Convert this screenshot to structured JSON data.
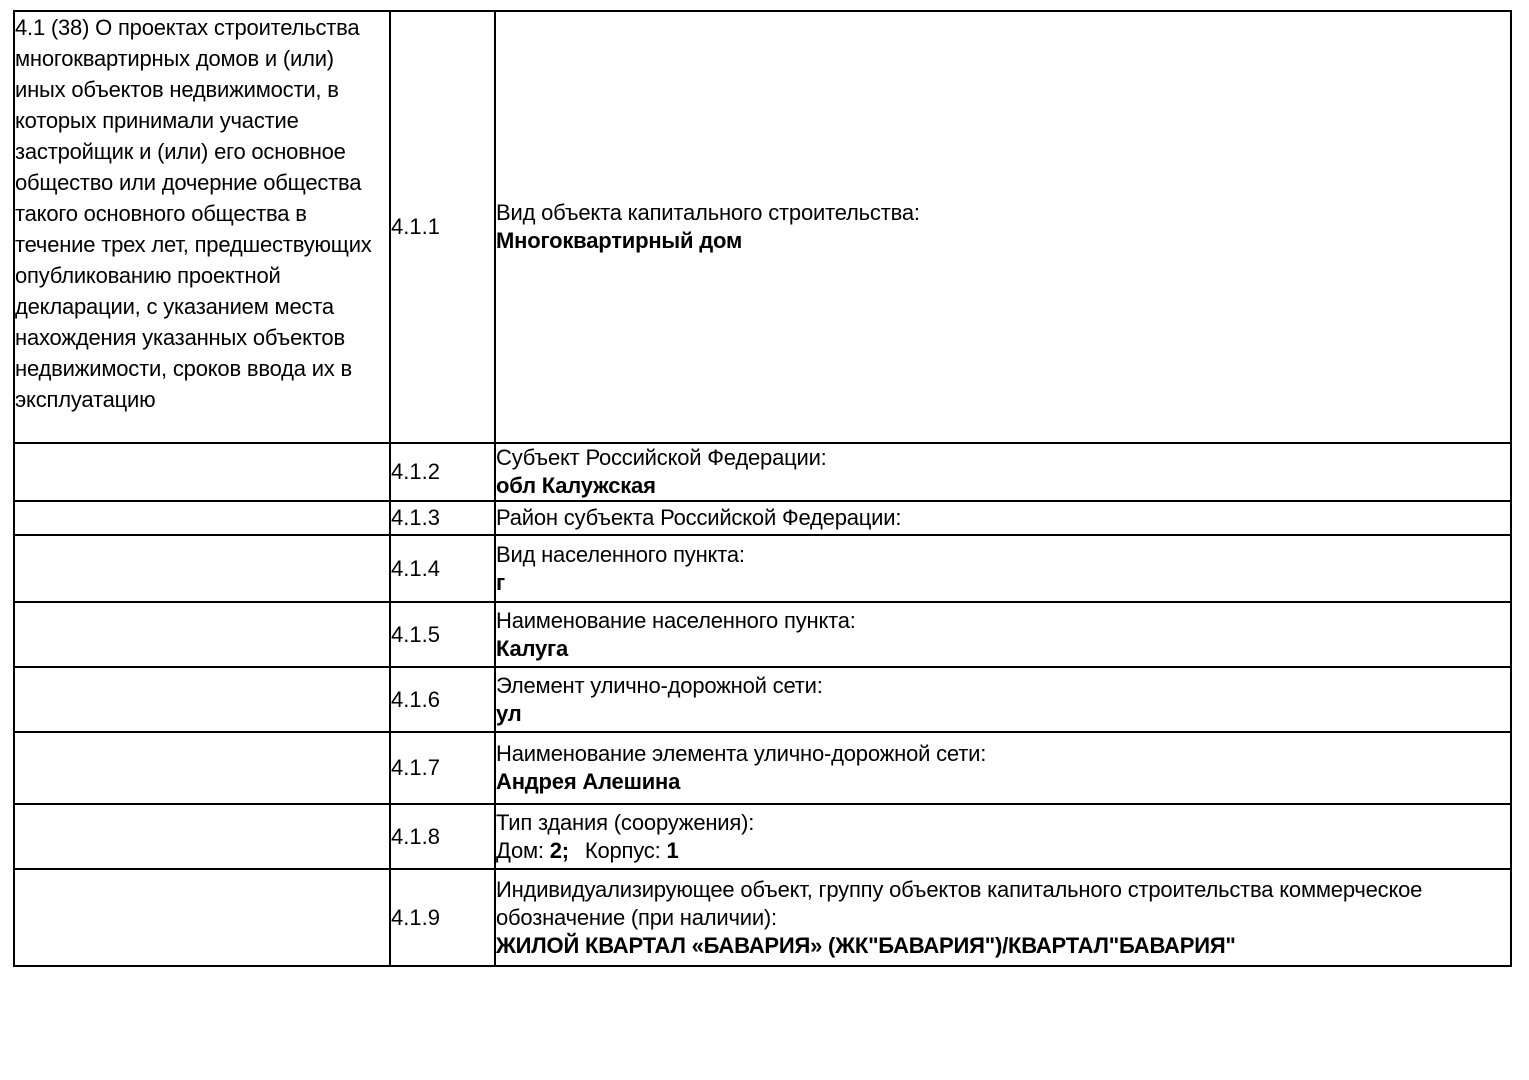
{
  "document": {
    "colors": {
      "background": "#ffffff",
      "text": "#000000",
      "border": "#000000"
    },
    "section": {
      "description": "4.1 (38) О проектах строительства многоквартирных домов и (или) иных объектов недвижимости, в которых принимали участие застройщик и (или) его основное общество или дочерние общества такого основного общества в течение трех лет, предшествующих опубликованию проектной декларации, с указанием места нахождения указанных объектов недвижимости, сроков ввода их в эксплуатацию"
    },
    "rows": [
      {
        "num": "4.1.1",
        "label": "Вид объекта капитального строительства:",
        "value": "Многоквартирный дом"
      },
      {
        "num": "4.1.2",
        "label": "Субъект Российской Федерации:",
        "value": "обл Калужская"
      },
      {
        "num": "4.1.3",
        "label": "Район субъекта Российской Федерации:",
        "value": ""
      },
      {
        "num": "4.1.4",
        "label": "Вид населенного пункта:",
        "value": "г"
      },
      {
        "num": "4.1.5",
        "label": "Наименование населенного пункта:",
        "value": "Калуга"
      },
      {
        "num": "4.1.6",
        "label": "Элемент улично-дорожной сети:",
        "value": "ул"
      },
      {
        "num": "4.1.7",
        "label": "Наименование элемента улично-дорожной сети:",
        "value": "Андрея Алешина"
      },
      {
        "num": "4.1.8",
        "label": "Тип здания (сооружения):",
        "value_parts": {
          "house_label": "Дом:",
          "house_value": "2;",
          "building_label": "Корпус:",
          "building_value": "1"
        }
      },
      {
        "num": "4.1.9",
        "label": "Индивидуализирующее объект, группу объектов капитального строительства коммерческое обозначение (при наличии):",
        "value": "ЖИЛОЙ КВАРТАЛ «БАВАРИЯ» (ЖК\"БАВАРИЯ\")/КВАРТАЛ\"БАВАРИЯ\""
      }
    ]
  }
}
